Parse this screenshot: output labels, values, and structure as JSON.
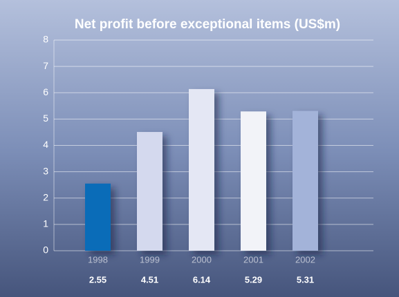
{
  "chart_data": {
    "type": "bar",
    "title": "Net profit before exceptional items (US$m)",
    "categories": [
      "1998",
      "1999",
      "2000",
      "2001",
      "2002"
    ],
    "values": [
      2.55,
      4.51,
      6.14,
      5.29,
      5.31
    ],
    "colors": [
      "#0a6cb8",
      "#d4d9ee",
      "#e4e7f4",
      "#f2f3f8",
      "#a3b3d9"
    ],
    "ylim": [
      0,
      8
    ],
    "yticks": [
      0,
      1,
      2,
      3,
      4,
      5,
      6,
      7,
      8
    ],
    "grid": true
  }
}
